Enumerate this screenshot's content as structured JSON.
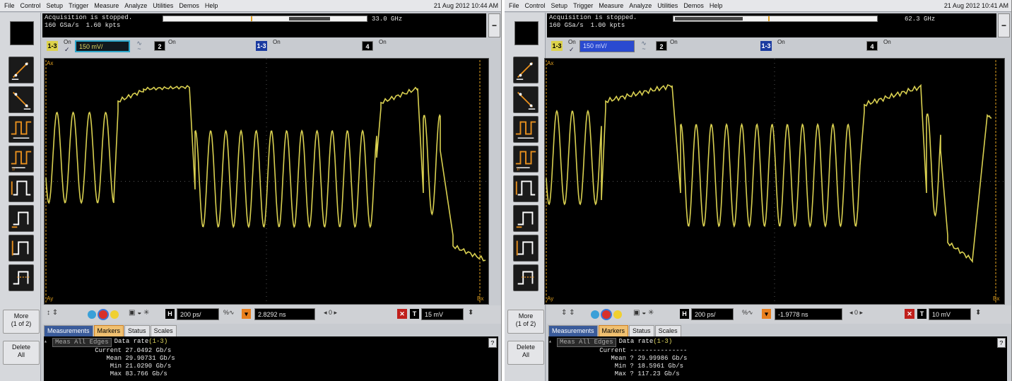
{
  "left": {
    "menu": [
      "File",
      "Control",
      "Setup",
      "Trigger",
      "Measure",
      "Analyze",
      "Utilities",
      "Demos",
      "Help"
    ],
    "datetime": "21 Aug 2012 10:44 AM",
    "status": "Acquisition is stopped.",
    "sample_rate": "160 GSa/s",
    "points": "1.60 kpts",
    "bandwidth": "33.0 GHz",
    "channels": [
      {
        "badge": "1-3",
        "on": "On",
        "scale": "150 mV/"
      },
      {
        "badge": "2",
        "on": "On"
      },
      {
        "badge": "1-3",
        "on": "On"
      },
      {
        "badge": "4",
        "on": "On"
      }
    ],
    "edge_labels": {
      "ax_top": "Ax",
      "ay": "Ay",
      "bx": "Bx"
    },
    "controls": {
      "h_badge": "H",
      "timebase": "200 ps/",
      "delay": "2.8292 ns",
      "position": "0",
      "t_badge": "T",
      "trigger_level": "15 mV"
    },
    "more": "More",
    "more_page": "(1 of 2)",
    "delete": "Delete",
    "delete_all": "All",
    "tabs": [
      "Measurements",
      "Markers",
      "Status",
      "Scales"
    ],
    "meas_all_edges": "Meas All Edges",
    "meas_title": "Data rate",
    "meas_source": "(1-3)",
    "measurements": [
      {
        "label": "Current",
        "value": "27.0492 Gb/s"
      },
      {
        "label": "Mean",
        "value": "29.90731 Gb/s"
      },
      {
        "label": "Min",
        "value": "21.0290 Gb/s"
      },
      {
        "label": "Max",
        "value": "83.766 Gb/s"
      }
    ],
    "help": "?"
  },
  "right": {
    "menu": [
      "File",
      "Control",
      "Setup",
      "Trigger",
      "Measure",
      "Analyze",
      "Utilities",
      "Demos",
      "Help"
    ],
    "datetime": "21 Aug 2012 10:41 AM",
    "status": "Acquisition is stopped.",
    "sample_rate": "160 GSa/s",
    "points": "1.00 kpts",
    "bandwidth": "62.3 GHz",
    "channels": [
      {
        "badge": "1-3",
        "on": "On",
        "scale": "150 mV/"
      },
      {
        "badge": "2",
        "on": "On"
      },
      {
        "badge": "1-3",
        "on": "On"
      },
      {
        "badge": "4",
        "on": "On"
      }
    ],
    "edge_labels": {
      "ax_top": "Ax",
      "ay": "Ay",
      "bx": "Bx"
    },
    "controls": {
      "h_badge": "H",
      "timebase": "200 ps/",
      "delay": "-1.9778 ns",
      "position": "0",
      "t_badge": "T",
      "trigger_level": "10 mV"
    },
    "more": "More",
    "more_page": "(1 of 2)",
    "delete": "Delete",
    "delete_all": "All",
    "tabs": [
      "Measurements",
      "Markers",
      "Status",
      "Scales"
    ],
    "meas_all_edges": "Meas All Edges",
    "meas_title": "Data rate",
    "meas_source": "(1-3)",
    "measurements": [
      {
        "label": "Current",
        "value": "---------------"
      },
      {
        "label": "Mean",
        "value": "? 29.99986 Gb/s"
      },
      {
        "label": "Min",
        "value": "? 18.5961 Gb/s"
      },
      {
        "label": "Max",
        "value": "? 117.23 Gb/s"
      }
    ],
    "help": "?"
  },
  "colors": {
    "trace": "#d9d050",
    "grid": "#555555",
    "marker": "#e0a020"
  }
}
